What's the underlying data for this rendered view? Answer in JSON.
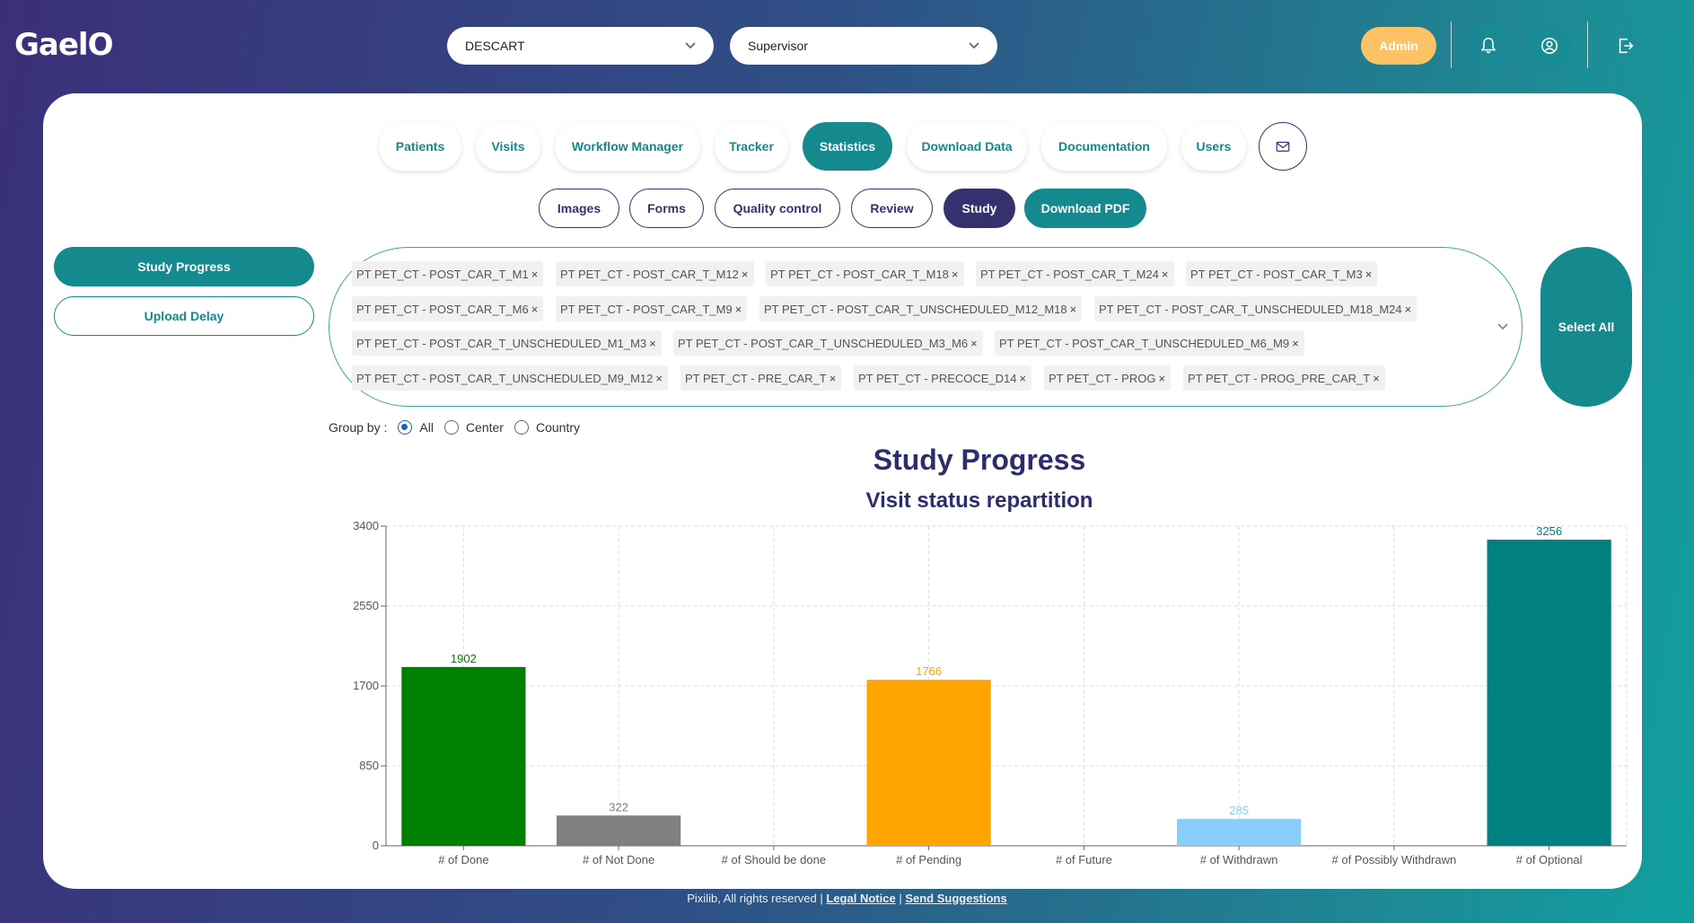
{
  "header": {
    "logo": "GaelO",
    "study_select": "DESCART",
    "role_select": "Supervisor",
    "admin_label": "Admin"
  },
  "tabs": [
    {
      "label": "Patients"
    },
    {
      "label": "Visits"
    },
    {
      "label": "Workflow Manager"
    },
    {
      "label": "Tracker"
    },
    {
      "label": "Statistics"
    },
    {
      "label": "Download Data"
    },
    {
      "label": "Documentation"
    },
    {
      "label": "Users"
    }
  ],
  "subtabs": [
    {
      "label": "Images"
    },
    {
      "label": "Forms"
    },
    {
      "label": "Quality control"
    },
    {
      "label": "Review"
    },
    {
      "label": "Study"
    },
    {
      "label": "Download PDF"
    }
  ],
  "sidebar": {
    "study_progress": "Study Progress",
    "upload_delay": "Upload Delay"
  },
  "filter": {
    "chips": [
      "PT PET_CT - POST_CAR_T_M1",
      "PT PET_CT - POST_CAR_T_M12",
      "PT PET_CT - POST_CAR_T_M18",
      "PT PET_CT - POST_CAR_T_M24",
      "PT PET_CT - POST_CAR_T_M3",
      "PT PET_CT - POST_CAR_T_M6",
      "PT PET_CT - POST_CAR_T_M9",
      "PT PET_CT - POST_CAR_T_UNSCHEDULED_M12_M18",
      "PT PET_CT - POST_CAR_T_UNSCHEDULED_M18_M24",
      "PT PET_CT - POST_CAR_T_UNSCHEDULED_M1_M3",
      "PT PET_CT - POST_CAR_T_UNSCHEDULED_M3_M6",
      "PT PET_CT - POST_CAR_T_UNSCHEDULED_M6_M9",
      "PT PET_CT - POST_CAR_T_UNSCHEDULED_M9_M12",
      "PT PET_CT - PRE_CAR_T",
      "PT PET_CT - PRECOCE_D14",
      "PT PET_CT - PROG",
      "PT PET_CT - PROG_PRE_CAR_T"
    ],
    "remove_symbol": "×",
    "select_all": "Select All"
  },
  "group_by": {
    "label": "Group by :",
    "options": [
      "All",
      "Center",
      "Country"
    ],
    "selected": "All"
  },
  "chart_data": {
    "type": "bar",
    "title": "Study Progress",
    "subtitle": "Visit status repartition",
    "categories": [
      "# of Done",
      "# of Not Done",
      "# of Should be done",
      "# of Pending",
      "# of Future",
      "# of Withdrawn",
      "# of Possibly Withdrawn",
      "# of Optional"
    ],
    "values": [
      1902,
      322,
      0,
      1766,
      0,
      285,
      0,
      3256
    ],
    "value_labels": [
      "1902",
      "322",
      "",
      "1766",
      "",
      "285",
      "",
      "3256"
    ],
    "colors": [
      "#008000",
      "#808080",
      "#808080",
      "#ffa500",
      "#808080",
      "#87cefa",
      "#808080",
      "#008080"
    ],
    "ylim": [
      0,
      3400
    ],
    "yticks": [
      "0",
      "850",
      "1700",
      "2550",
      "3400"
    ],
    "grid": true,
    "xlabel": "",
    "ylabel": ""
  },
  "footer": {
    "copyright": "Pixilib, All rights reserved |",
    "legal": "Legal Notice",
    "sep": "|",
    "suggest": "Send Suggestions"
  },
  "icons": [
    "chevron-down-icon",
    "bell-icon",
    "user-circle-icon",
    "logout-icon",
    "mail-icon"
  ]
}
